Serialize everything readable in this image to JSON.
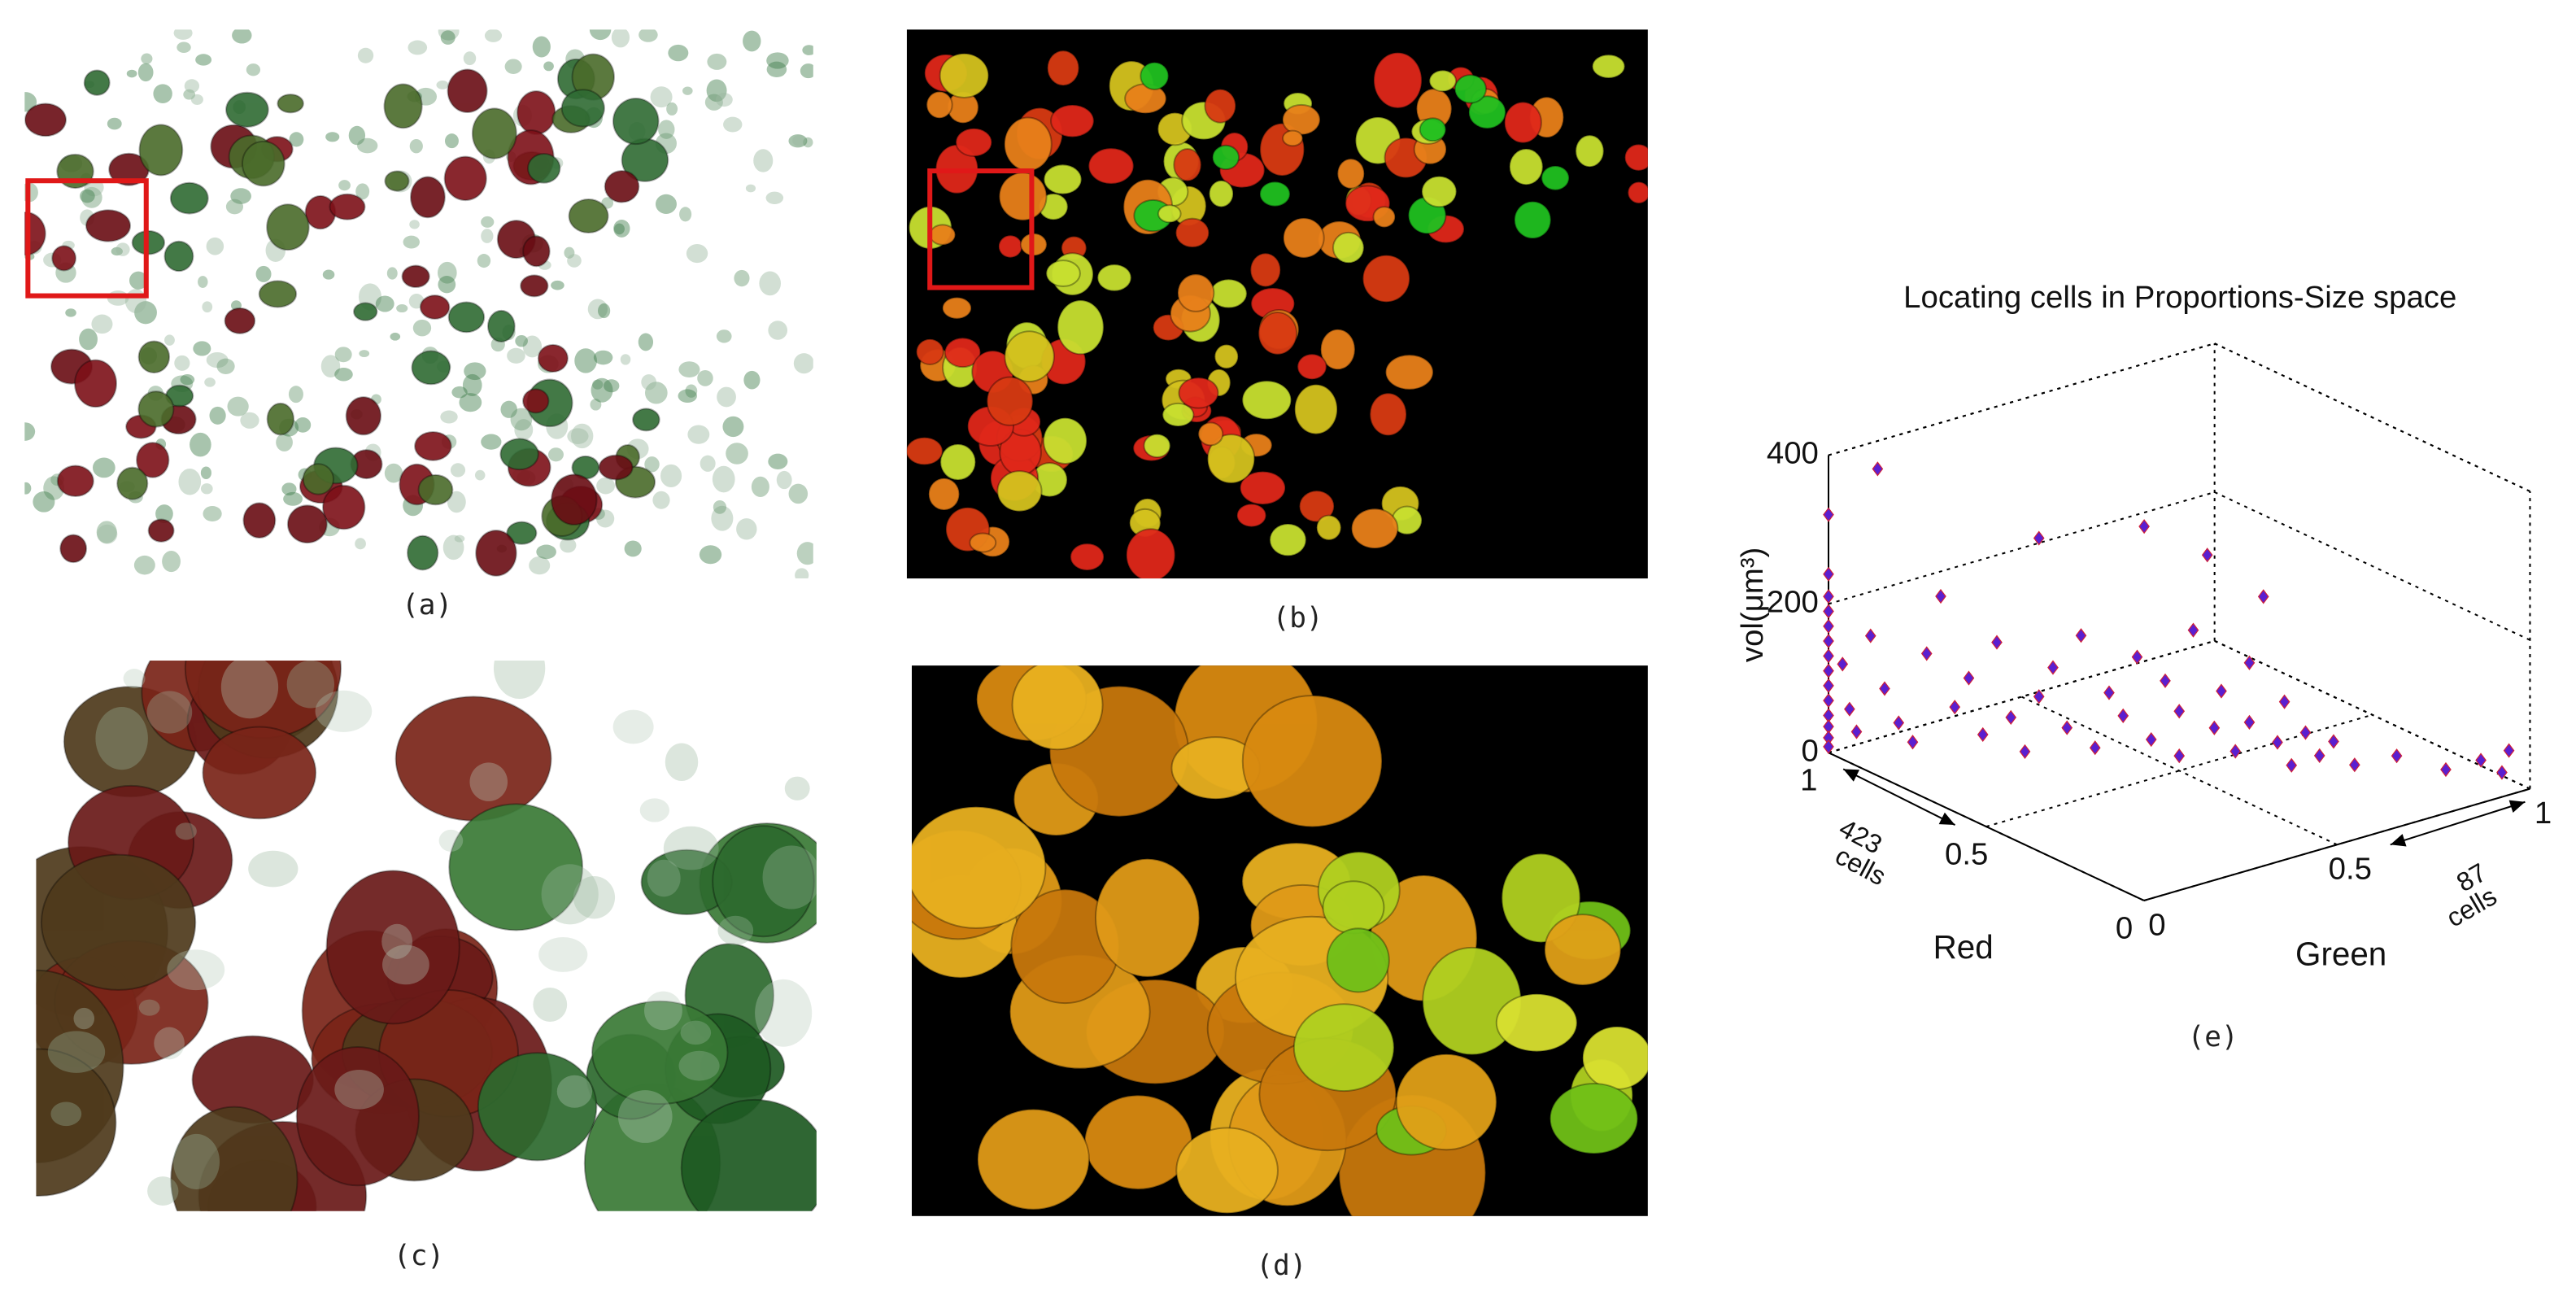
{
  "panel_labels": [
    "(a)",
    "(b)",
    "(c)",
    "(d)",
    "(e)"
  ],
  "chart_data": {
    "type": "scatter3d",
    "title": "Locating cells in Proportions-Size space",
    "xlabel": "Red",
    "ylabel": "Green",
    "zlabel": "vol(μm³)",
    "xlim": [
      0,
      1
    ],
    "ylim": [
      0,
      1
    ],
    "zlim": [
      0,
      400
    ],
    "xticks": [
      0,
      0.5,
      1
    ],
    "yticks": [
      0,
      0.5,
      1
    ],
    "zticks": [
      0,
      200,
      400
    ],
    "annotations": [
      [
        "423",
        "cells"
      ],
      [
        "87",
        "cells"
      ]
    ],
    "color": "#5a1fd0",
    "edge_color": "#d0203a",
    "green": [
      0,
      0,
      0,
      0,
      0,
      0,
      0,
      0,
      0,
      0,
      0,
      0,
      0,
      0,
      0.02,
      0.03,
      0.04,
      0.07,
      0.06,
      0.08,
      0.1,
      0.12,
      0.14,
      0.16,
      0.18,
      0.2,
      0.22,
      0.24,
      0.26,
      0.28,
      0.3,
      0.3,
      0.32,
      0.34,
      0.36,
      0.38,
      0.4,
      0.42,
      0.44,
      0.45,
      0.46,
      0.48,
      0.5,
      0.5,
      0.52,
      0.54,
      0.55,
      0.56,
      0.58,
      0.6,
      0.6,
      0.62,
      0.64,
      0.65,
      0.66,
      0.68,
      0.7,
      0.72,
      0.75,
      0.81,
      0.88,
      0.93,
      0.96,
      0.97
    ],
    "red": [
      1,
      1,
      1,
      1,
      1,
      1,
      1,
      1,
      1,
      1,
      1,
      1,
      1,
      1,
      0.98,
      0.97,
      0.96,
      0.93,
      0.94,
      0.92,
      0.9,
      0.88,
      0.86,
      0.84,
      0.82,
      0.8,
      0.78,
      0.76,
      0.74,
      0.72,
      0.7,
      0.7,
      0.68,
      0.66,
      0.64,
      0.62,
      0.6,
      0.58,
      0.56,
      0.55,
      0.54,
      0.52,
      0.5,
      0.5,
      0.48,
      0.46,
      0.45,
      0.44,
      0.42,
      0.4,
      0.4,
      0.38,
      0.36,
      0.35,
      0.34,
      0.32,
      0.3,
      0.28,
      0.25,
      0.19,
      0.12,
      0.07,
      0.04,
      0.03
    ],
    "vol": [
      320,
      240,
      210,
      190,
      170,
      150,
      130,
      110,
      90,
      70,
      50,
      35,
      20,
      8,
      120,
      60,
      30,
      385,
      160,
      90,
      45,
      20,
      140,
      218,
      70,
      110,
      35,
      160,
      60,
      15,
      303,
      90,
      130,
      50,
      175,
      25,
      100,
      70,
      150,
      326,
      40,
      120,
      80,
      20,
      190,
      292,
      60,
      110,
      30,
      150,
      70,
      240,
      45,
      100,
      15,
      60,
      30,
      50,
      20,
      35,
      20,
      35,
      20,
      50
    ]
  }
}
